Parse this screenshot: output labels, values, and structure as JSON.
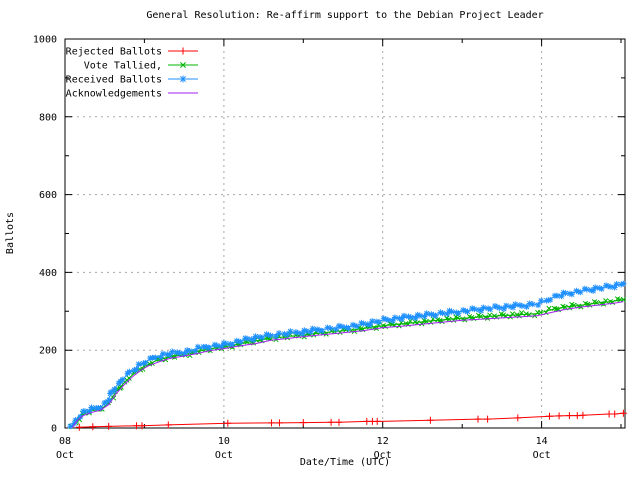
{
  "page": {
    "background": "#ffffff",
    "axis_color": "#000000",
    "grid_color": "#a8a8a8"
  },
  "chart_data": {
    "type": "line",
    "title": "General Resolution: Re-affirm support to the Debian Project Leader",
    "xlabel": "Date/Time (UTC)",
    "ylabel": "Ballots",
    "ylim": [
      0,
      1000
    ],
    "grid": {
      "x_days": [
        2,
        4,
        6
      ],
      "y_values": [
        200,
        400,
        600,
        800
      ],
      "color": "#a8a8a8"
    },
    "legend_position": "top-left",
    "x_axis": {
      "range_days": [
        0,
        7.05
      ],
      "major_ticks": [
        {
          "pos": 0,
          "day": "08",
          "month": "Oct"
        },
        {
          "pos": 2,
          "day": "10",
          "month": "Oct"
        },
        {
          "pos": 4,
          "day": "12",
          "month": "Oct"
        },
        {
          "pos": 6,
          "day": "14",
          "month": "Oct"
        }
      ],
      "minor_ticks": [
        1,
        3,
        5,
        7
      ]
    },
    "y_axis": {
      "major_ticks": [
        0,
        200,
        400,
        600,
        800,
        1000
      ],
      "minor_ticks": [
        100,
        300,
        500,
        700,
        900
      ]
    },
    "series": [
      {
        "name": "Rejected Ballots",
        "color": "#ff0000",
        "marker": "plus",
        "dense": false,
        "points": [
          [
            0.18,
            2
          ],
          [
            0.35,
            3
          ],
          [
            0.55,
            4
          ],
          [
            0.9,
            6
          ],
          [
            0.97,
            6
          ],
          [
            1.3,
            8
          ],
          [
            2.05,
            12
          ],
          [
            2.6,
            13
          ],
          [
            2.7,
            13
          ],
          [
            3.0,
            14
          ],
          [
            3.35,
            15
          ],
          [
            3.45,
            15
          ],
          [
            3.8,
            17
          ],
          [
            3.87,
            17
          ],
          [
            3.93,
            17
          ],
          [
            4.6,
            20
          ],
          [
            5.2,
            23
          ],
          [
            5.32,
            23
          ],
          [
            5.7,
            26
          ],
          [
            6.1,
            30
          ],
          [
            6.22,
            31
          ],
          [
            6.35,
            32
          ],
          [
            6.45,
            32
          ],
          [
            6.52,
            33
          ],
          [
            6.85,
            36
          ],
          [
            6.92,
            36
          ],
          [
            7.03,
            38
          ]
        ]
      },
      {
        "name": "Vote Tallied,",
        "color": "#00b400",
        "marker": "cross",
        "dense": true,
        "points": [
          [
            0.09,
            0
          ],
          [
            0.13,
            12
          ],
          [
            0.17,
            26
          ],
          [
            0.22,
            35
          ],
          [
            0.3,
            42
          ],
          [
            0.4,
            47
          ],
          [
            0.48,
            53
          ],
          [
            0.54,
            62
          ],
          [
            0.6,
            80
          ],
          [
            0.66,
            98
          ],
          [
            0.74,
            115
          ],
          [
            0.82,
            131
          ],
          [
            0.9,
            145
          ],
          [
            0.98,
            156
          ],
          [
            1.06,
            165
          ],
          [
            1.15,
            173
          ],
          [
            1.26,
            180
          ],
          [
            1.38,
            185
          ],
          [
            1.52,
            189
          ],
          [
            1.64,
            195
          ],
          [
            1.76,
            201
          ],
          [
            1.88,
            205
          ],
          [
            2.0,
            208
          ],
          [
            2.15,
            214
          ],
          [
            2.3,
            220
          ],
          [
            2.45,
            226
          ],
          [
            2.6,
            231
          ],
          [
            2.75,
            234
          ],
          [
            2.9,
            237
          ],
          [
            3.05,
            240
          ],
          [
            3.2,
            244
          ],
          [
            3.35,
            247
          ],
          [
            3.5,
            250
          ],
          [
            3.65,
            253
          ],
          [
            3.8,
            257
          ],
          [
            4.0,
            263
          ],
          [
            4.2,
            267
          ],
          [
            4.4,
            271
          ],
          [
            4.6,
            275
          ],
          [
            4.8,
            279
          ],
          [
            5.0,
            282
          ],
          [
            5.2,
            285
          ],
          [
            5.4,
            288
          ],
          [
            5.6,
            290
          ],
          [
            5.8,
            292
          ],
          [
            5.95,
            294
          ],
          [
            6.05,
            300
          ],
          [
            6.15,
            306
          ],
          [
            6.3,
            311
          ],
          [
            6.5,
            316
          ],
          [
            6.7,
            321
          ],
          [
            6.9,
            326
          ],
          [
            7.03,
            330
          ]
        ]
      },
      {
        "name": "Received Ballots",
        "color": "#1e90ff",
        "marker": "star",
        "dense": true,
        "points": [
          [
            0.08,
            0
          ],
          [
            0.11,
            10
          ],
          [
            0.14,
            22
          ],
          [
            0.18,
            33
          ],
          [
            0.23,
            40
          ],
          [
            0.3,
            46
          ],
          [
            0.38,
            50
          ],
          [
            0.46,
            56
          ],
          [
            0.52,
            66
          ],
          [
            0.57,
            84
          ],
          [
            0.63,
            104
          ],
          [
            0.7,
            120
          ],
          [
            0.78,
            136
          ],
          [
            0.86,
            150
          ],
          [
            0.94,
            161
          ],
          [
            1.02,
            171
          ],
          [
            1.1,
            179
          ],
          [
            1.2,
            186
          ],
          [
            1.32,
            191
          ],
          [
            1.45,
            194
          ],
          [
            1.58,
            198
          ],
          [
            1.68,
            204
          ],
          [
            1.78,
            210
          ],
          [
            1.88,
            211
          ],
          [
            2.0,
            214
          ],
          [
            2.15,
            221
          ],
          [
            2.3,
            228
          ],
          [
            2.45,
            234
          ],
          [
            2.6,
            239
          ],
          [
            2.75,
            242
          ],
          [
            2.9,
            245
          ],
          [
            3.05,
            249
          ],
          [
            3.2,
            253
          ],
          [
            3.35,
            256
          ],
          [
            3.5,
            259
          ],
          [
            3.65,
            263
          ],
          [
            3.8,
            268
          ],
          [
            4.0,
            277
          ],
          [
            4.2,
            282
          ],
          [
            4.4,
            287
          ],
          [
            4.6,
            291
          ],
          [
            4.8,
            296
          ],
          [
            5.0,
            300
          ],
          [
            5.2,
            305
          ],
          [
            5.4,
            309
          ],
          [
            5.6,
            312
          ],
          [
            5.8,
            316
          ],
          [
            5.95,
            319
          ],
          [
            6.05,
            326
          ],
          [
            6.12,
            334
          ],
          [
            6.2,
            340
          ],
          [
            6.35,
            347
          ],
          [
            6.5,
            352
          ],
          [
            6.65,
            357
          ],
          [
            6.8,
            362
          ],
          [
            6.95,
            367
          ],
          [
            7.03,
            371
          ]
        ]
      },
      {
        "name": "Acknowledgements",
        "color": "#a020f0",
        "marker": "none",
        "dense": false,
        "points": [
          [
            0.09,
            0
          ],
          [
            0.15,
            18
          ],
          [
            0.22,
            31
          ],
          [
            0.32,
            39
          ],
          [
            0.45,
            46
          ],
          [
            0.55,
            60
          ],
          [
            0.65,
            90
          ],
          [
            0.75,
            112
          ],
          [
            0.85,
            132
          ],
          [
            0.95,
            148
          ],
          [
            1.05,
            160
          ],
          [
            1.18,
            170
          ],
          [
            1.32,
            179
          ],
          [
            1.5,
            185
          ],
          [
            1.65,
            191
          ],
          [
            1.8,
            198
          ],
          [
            2.0,
            204
          ],
          [
            2.2,
            211
          ],
          [
            2.4,
            217
          ],
          [
            2.6,
            226
          ],
          [
            2.8,
            230
          ],
          [
            3.0,
            235
          ],
          [
            3.25,
            240
          ],
          [
            3.5,
            245
          ],
          [
            3.75,
            250
          ],
          [
            4.0,
            258
          ],
          [
            4.25,
            262
          ],
          [
            4.5,
            267
          ],
          [
            4.75,
            272
          ],
          [
            5.0,
            277
          ],
          [
            5.25,
            280
          ],
          [
            5.5,
            283
          ],
          [
            5.75,
            286
          ],
          [
            5.95,
            289
          ],
          [
            6.1,
            296
          ],
          [
            6.3,
            305
          ],
          [
            6.5,
            311
          ],
          [
            6.75,
            317
          ],
          [
            6.95,
            322
          ],
          [
            7.03,
            325
          ]
        ]
      }
    ]
  }
}
